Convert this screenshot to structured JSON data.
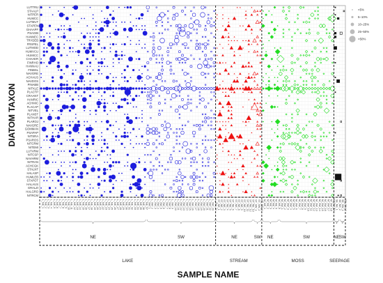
{
  "chart_data": {
    "type": "scatter",
    "subtype": "bubble-matrix",
    "ylabel": "DIATOM TAXON",
    "xlabel": "SAMPLE NAME",
    "taxa": [
      "LUTTRU",
      "STAALP",
      "NITPER",
      "HUMCC",
      "LUTMUT",
      "STAPEN",
      "GHAAPF",
      "PSAGIB",
      "HANNEC",
      "TRYDEB",
      "FRSPEL",
      "LUTMOD",
      "HUMVCU",
      "HUMICC",
      "CHAAER",
      "FINRHO",
      "HANNAU",
      "FINBSL",
      "NAVGRE",
      "ACHAUS",
      "NAVDOS",
      "PINABB",
      "NITKLE",
      "PLACTP",
      "CRAANT",
      "HANRIC",
      "ACHMIC",
      "FLACAP",
      "NITVEL",
      "PLANST",
      "NITHAR",
      "PLAROJ",
      "NAVGRE",
      "GOMMAN",
      "PSAPAP",
      "NITSRA",
      "PSAROS",
      "NITCRM",
      "NITEMI",
      "LUTVRM",
      "NITCSP",
      "NAVHRM",
      "NITRAN",
      "ACHCGK",
      "STALNT",
      "HALASP",
      "HUMLEB",
      "STAPOT",
      "HALAUS",
      "GRALZI",
      "HALGRO",
      "NITRCM"
    ],
    "sections": [
      {
        "name": "LAKE",
        "regions": [
          {
            "name": "NE",
            "samples": 37
          },
          {
            "name": "SW",
            "samples": 24
          }
        ],
        "color": "#1c1cdd",
        "marker": "circle"
      },
      {
        "name": "STREAM",
        "regions": [
          {
            "name": "NE",
            "samples": 13
          },
          {
            "name": "SW",
            "samples": 3
          }
        ],
        "color": "#ee1111",
        "marker": "triangle"
      },
      {
        "name": "MOSS",
        "regions": [
          {
            "name": "NE",
            "samples": 6
          },
          {
            "name": "SW",
            "samples": 19
          }
        ],
        "color": "#22dd22",
        "marker": "diamond"
      },
      {
        "name": "SEEPAGE",
        "regions": [
          {
            "name": "NE",
            "samples": 2
          },
          {
            "name": "SW",
            "samples": 2
          }
        ],
        "color": "#111111",
        "marker": "square"
      }
    ],
    "legend": {
      "title": "",
      "items": [
        "<5%",
        "5–10%",
        "10–25%",
        "25–50%",
        ">50%"
      ],
      "position": "right"
    },
    "grid": true
  }
}
